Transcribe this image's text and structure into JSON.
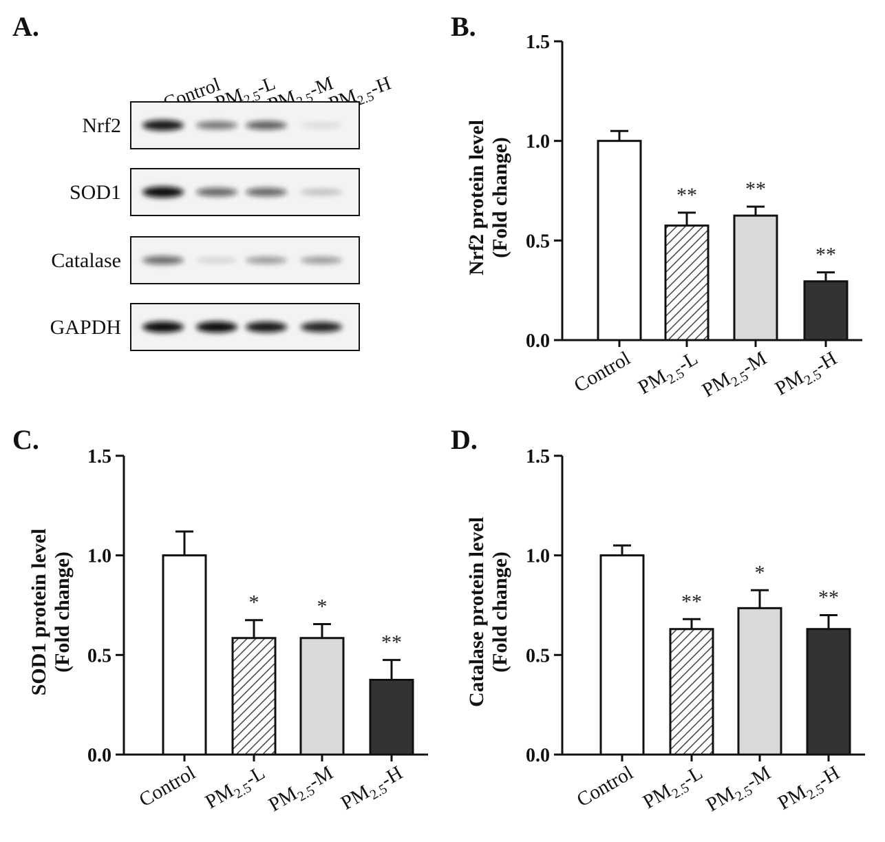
{
  "panel_letters": {
    "a": "A.",
    "b": "B.",
    "c": "C.",
    "d": "D."
  },
  "blot": {
    "lanes": [
      {
        "base": "Control",
        "sub": "",
        "suffix": ""
      },
      {
        "base": "PM",
        "sub": "2.5",
        "suffix": "-L"
      },
      {
        "base": "PM",
        "sub": "2.5",
        "suffix": "-M"
      },
      {
        "base": "PM",
        "sub": "2.5",
        "suffix": "-H"
      }
    ],
    "rows": [
      {
        "label": "Nrf2",
        "intensities": [
          0.95,
          0.55,
          0.65,
          0.12
        ]
      },
      {
        "label": "SOD1",
        "intensities": [
          1.0,
          0.62,
          0.62,
          0.25
        ]
      },
      {
        "label": "Catalase",
        "intensities": [
          0.6,
          0.15,
          0.4,
          0.4
        ]
      },
      {
        "label": "GAPDH",
        "intensities": [
          1.0,
          1.0,
          0.95,
          0.9
        ]
      }
    ]
  },
  "colors": {
    "control": "#ffffff",
    "pm_l_hatch": "#444444",
    "pm_m": "#d9d9d9",
    "pm_h": "#333333",
    "axis": "#111111"
  },
  "chart_data": [
    {
      "type": "bar",
      "panel": "B.",
      "categories": [
        "Control",
        "PM2.5-L",
        "PM2.5-M",
        "PM2.5-H"
      ],
      "values": [
        1.0,
        0.575,
        0.625,
        0.295
      ],
      "errors": [
        0.05,
        0.065,
        0.045,
        0.045
      ],
      "significance": [
        "",
        "**",
        "**",
        "**"
      ],
      "ylabel_line1": "Nrf2 protein level",
      "ylabel_line2": "(Fold change)",
      "ylim": [
        0,
        1.5
      ],
      "yticks": [
        "0.0",
        "0.5",
        "1.0",
        "1.5"
      ]
    },
    {
      "type": "bar",
      "panel": "C.",
      "categories": [
        "Control",
        "PM2.5-L",
        "PM2.5-M",
        "PM2.5-H"
      ],
      "values": [
        1.0,
        0.585,
        0.585,
        0.375
      ],
      "errors": [
        0.12,
        0.09,
        0.07,
        0.1
      ],
      "significance": [
        "",
        "*",
        "*",
        "**"
      ],
      "ylabel_line1": "SOD1 protein level",
      "ylabel_line2": "(Fold change)",
      "ylim": [
        0,
        1.5
      ],
      "yticks": [
        "0.0",
        "0.5",
        "1.0",
        "1.5"
      ]
    },
    {
      "type": "bar",
      "panel": "D.",
      "categories": [
        "Control",
        "PM2.5-L",
        "PM2.5-M",
        "PM2.5-H"
      ],
      "values": [
        1.0,
        0.63,
        0.735,
        0.63
      ],
      "errors": [
        0.05,
        0.05,
        0.09,
        0.07
      ],
      "significance": [
        "",
        "**",
        "*",
        "**"
      ],
      "ylabel_line1": "Catalase protein level",
      "ylabel_line2": "(Fold change)",
      "ylim": [
        0,
        1.5
      ],
      "yticks": [
        "0.0",
        "0.5",
        "1.0",
        "1.5"
      ]
    }
  ]
}
